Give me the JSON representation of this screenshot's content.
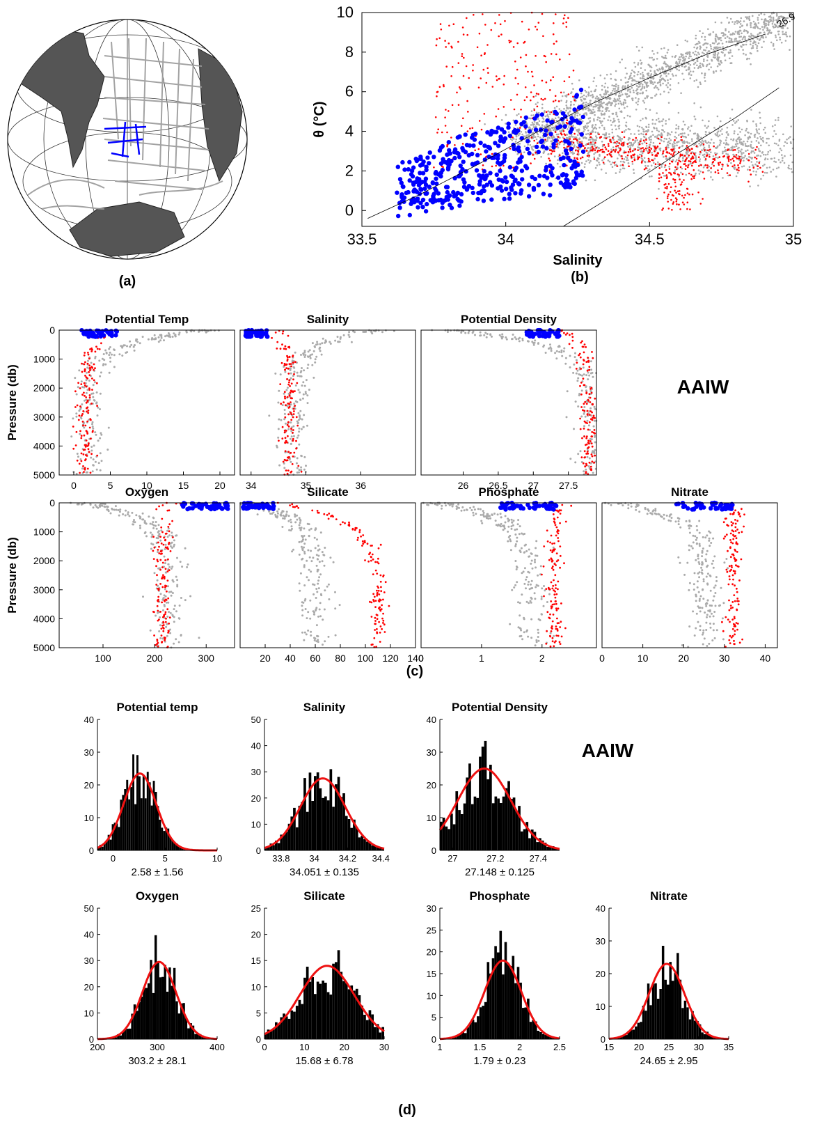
{
  "panel_labels": {
    "a": "(a)",
    "b": "(b)",
    "c": "(c)",
    "d": "(d)"
  },
  "colors": {
    "climatology": "#aaaaaa",
    "selected_water": "#ff0000",
    "aaiw_samples": "#0000ff",
    "hist_bar": "#000000",
    "gauss_fit": "#ee1111",
    "land": "#555555"
  },
  "map": {
    "type": "orthographic-globe",
    "description_colors": [
      "land-dark",
      "station-tracks-gray",
      "aaiw-stations-blue"
    ]
  },
  "chart_data": [
    {
      "id": "ts",
      "type": "scatter",
      "xlabel": "Salinity",
      "ylabel": "θ (°C)",
      "xlim": [
        33.5,
        35
      ],
      "ylim": [
        -0.8,
        10
      ],
      "xticks": [
        33.5,
        34,
        34.5,
        35
      ],
      "yticks": [
        0,
        2,
        4,
        6,
        8,
        10
      ],
      "isopycnal_label": "26.9",
      "isopycnals": [
        {
          "x": [
            33.52,
            33.7,
            33.9,
            34.1,
            34.3,
            34.5,
            34.7,
            34.9
          ],
          "y": [
            -0.4,
            0.8,
            2.3,
            3.9,
            5.4,
            6.7,
            7.9,
            8.9
          ]
        },
        {
          "x": [
            34.2,
            34.4,
            34.6,
            34.8,
            34.95
          ],
          "y": [
            -0.8,
            1.0,
            2.9,
            4.7,
            6.2
          ]
        }
      ]
    },
    {
      "id": "profiles",
      "type": "scatter",
      "ylabel": "Pressure (db)",
      "ylim": [
        0,
        5000
      ],
      "yticks": [
        0,
        1000,
        2000,
        3000,
        4000,
        5000
      ],
      "water_mass": "AAIW",
      "panels": [
        {
          "title": "Potential Temp",
          "xlim": [
            -2,
            22
          ],
          "xticks": [
            0,
            5,
            10,
            15,
            20
          ]
        },
        {
          "title": "Salinity",
          "xlim": [
            33.8,
            37
          ],
          "xticks": [
            34,
            35,
            36
          ]
        },
        {
          "title": "Potential Density",
          "xlim": [
            25.4,
            27.9
          ],
          "xticks": [
            26,
            26.5,
            27,
            27.5
          ]
        },
        {
          "title": "Oxygen",
          "xlim": [
            15,
            355
          ],
          "xticks": [
            100,
            200,
            300
          ]
        },
        {
          "title": "Silicate",
          "xlim": [
            0,
            140
          ],
          "xticks": [
            20,
            40,
            60,
            80,
            100,
            120,
            140
          ]
        },
        {
          "title": "Phosphate",
          "xlim": [
            0,
            2.9
          ],
          "xticks": [
            0,
            1,
            2
          ]
        },
        {
          "title": "Nitrate",
          "xlim": [
            0,
            43
          ],
          "xticks": [
            0,
            10,
            20,
            30,
            40
          ]
        }
      ]
    },
    {
      "id": "histograms",
      "type": "bar",
      "water_mass": "AAIW",
      "panels": [
        {
          "title": "Potential temp",
          "xlim": [
            -1.5,
            10
          ],
          "ylim": [
            0,
            40
          ],
          "xticks": [
            0,
            5,
            10
          ],
          "yticks": [
            0,
            10,
            20,
            30,
            40
          ],
          "mean": 2.58,
          "std": 1.56,
          "stats": "2.58 ± 1.56",
          "peak": 23.5
        },
        {
          "title": "Salinity",
          "xlim": [
            33.7,
            34.42
          ],
          "ylim": [
            0,
            50
          ],
          "xticks": [
            33.8,
            34,
            34.2,
            34.4
          ],
          "yticks": [
            0,
            10,
            20,
            30,
            40,
            50
          ],
          "mean": 34.051,
          "std": 0.135,
          "stats": "34.051 ± 0.135",
          "peak": 27.5
        },
        {
          "title": "Potential Density",
          "xlim": [
            26.94,
            27.5
          ],
          "ylim": [
            0,
            40
          ],
          "xticks": [
            27,
            27.2,
            27.4
          ],
          "yticks": [
            0,
            10,
            20,
            30,
            40
          ],
          "mean": 27.148,
          "std": 0.125,
          "stats": "27.148 ± 0.125",
          "peak": 25
        },
        {
          "title": "Oxygen",
          "xlim": [
            200,
            400
          ],
          "ylim": [
            0,
            50
          ],
          "xticks": [
            200,
            300,
            400
          ],
          "yticks": [
            0,
            10,
            20,
            30,
            40,
            50
          ],
          "mean": 303.2,
          "std": 28.1,
          "stats": "303.2 ± 28.1",
          "peak": 29.5
        },
        {
          "title": "Silicate",
          "xlim": [
            0,
            30
          ],
          "ylim": [
            0,
            25
          ],
          "xticks": [
            0,
            10,
            20,
            30
          ],
          "yticks": [
            0,
            5,
            10,
            15,
            20,
            25
          ],
          "mean": 15.68,
          "std": 6.78,
          "stats": "15.68 ± 6.78",
          "peak": 14
        },
        {
          "title": "Phosphate",
          "xlim": [
            1,
            2.5
          ],
          "ylim": [
            0,
            30
          ],
          "xticks": [
            1,
            1.5,
            2,
            2.5
          ],
          "yticks": [
            0,
            5,
            10,
            15,
            20,
            25,
            30
          ],
          "mean": 1.79,
          "std": 0.23,
          "stats": "1.79 ± 0.23",
          "peak": 18
        },
        {
          "title": "Nitrate",
          "xlim": [
            15,
            35
          ],
          "ylim": [
            0,
            40
          ],
          "xticks": [
            15,
            20,
            25,
            30,
            35
          ],
          "yticks": [
            0,
            10,
            20,
            30,
            40
          ],
          "mean": 24.65,
          "std": 2.95,
          "stats": "24.65 ± 2.95",
          "peak": 23
        }
      ]
    }
  ]
}
